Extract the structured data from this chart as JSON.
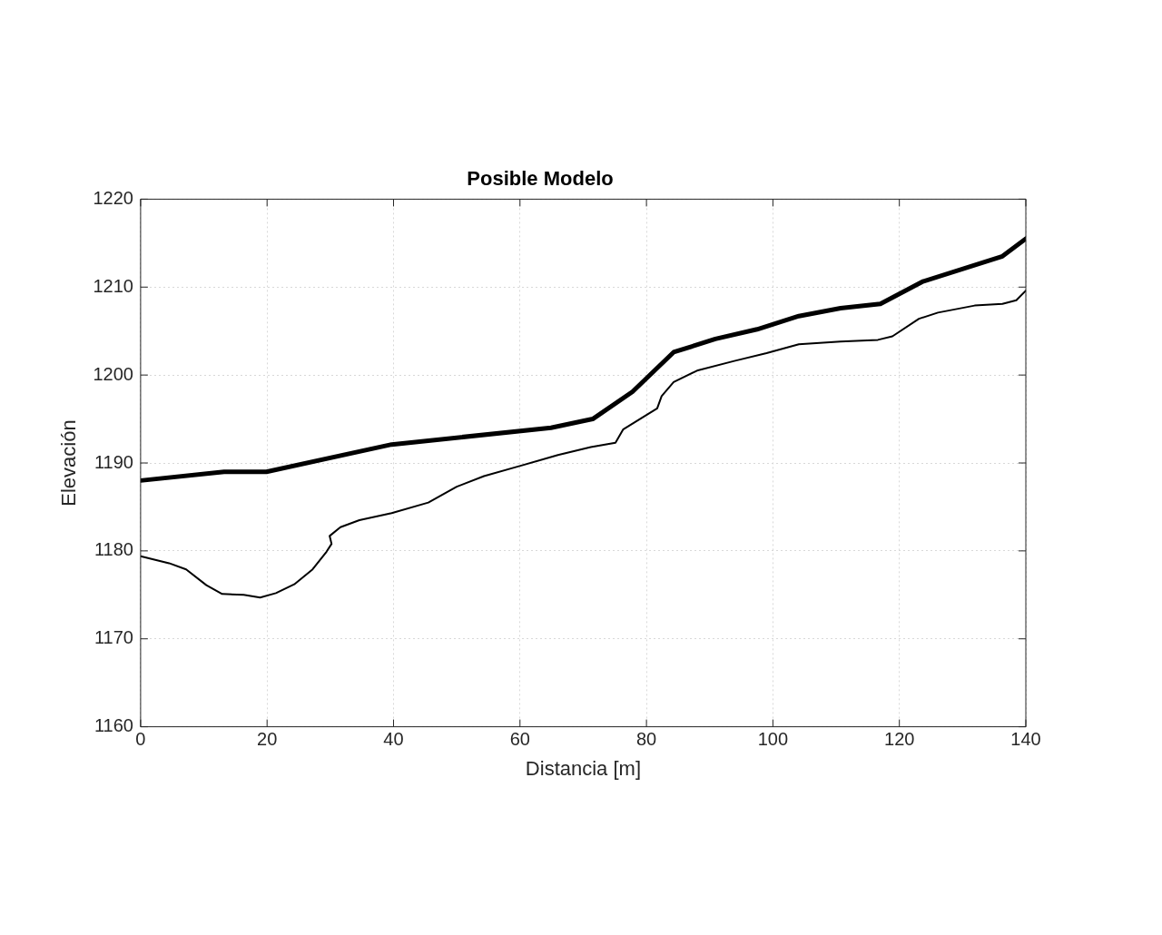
{
  "chart_data": {
    "type": "line",
    "title": "Posible Modelo",
    "xlabel": "Distancia [m]",
    "ylabel": "Elevación",
    "xlim": [
      0,
      140
    ],
    "xticks": [
      0,
      20,
      40,
      60,
      80,
      100,
      120,
      140
    ],
    "ylim": [
      1160,
      1220
    ],
    "yticks": [
      1160,
      1170,
      1180,
      1190,
      1200,
      1210,
      1220
    ],
    "grid": true,
    "legend": false,
    "marker": "none",
    "line_style": "solid",
    "series": [
      {
        "color": "#000000",
        "x": [
          0,
          13.2,
          19.9,
          39.7,
          64.9,
          71.5,
          77.8,
          84.3,
          90.9,
          97.5,
          104.1,
          110.7,
          117,
          123.6,
          136.3,
          140
        ],
        "values": [
          1188.0,
          1189.0,
          1189.0,
          1192.1,
          1194.0,
          1195.0,
          1198.1,
          1202.6,
          1204.1,
          1205.2,
          1206.7,
          1207.6,
          1208.1,
          1210.6,
          1213.5,
          1215.5
        ]
      },
      {
        "color": "#000000",
        "x": [
          0,
          4.5,
          7.2,
          10.4,
          12.9,
          16.3,
          18.9,
          21.4,
          24.3,
          27.2,
          29.4,
          30.2,
          29.9,
          31.6,
          34.6,
          39.7,
          45.5,
          50,
          54.3,
          60.2,
          66,
          71.2,
          75.1,
          76.3,
          79.2,
          81.7,
          82.4,
          84.3,
          88,
          93.9,
          99,
          104.1,
          110.7,
          116.6,
          118.9,
          123.1,
          126.1,
          131.9,
          136.3,
          138.5,
          140
        ],
        "values": [
          1179.4,
          1178.6,
          1177.9,
          1176.1,
          1175.1,
          1175.0,
          1174.7,
          1175.2,
          1176.2,
          1177.9,
          1179.9,
          1180.8,
          1181.7,
          1182.7,
          1183.5,
          1184.3,
          1185.5,
          1187.3,
          1188.5,
          1189.7,
          1190.9,
          1191.8,
          1192.3,
          1193.8,
          1195.1,
          1196.2,
          1197.6,
          1199.2,
          1200.5,
          1201.6,
          1202.5,
          1203.5,
          1203.8,
          1204.0,
          1204.4,
          1206.4,
          1207.1,
          1207.9,
          1208.1,
          1208.5,
          1209.6
        ]
      }
    ]
  }
}
